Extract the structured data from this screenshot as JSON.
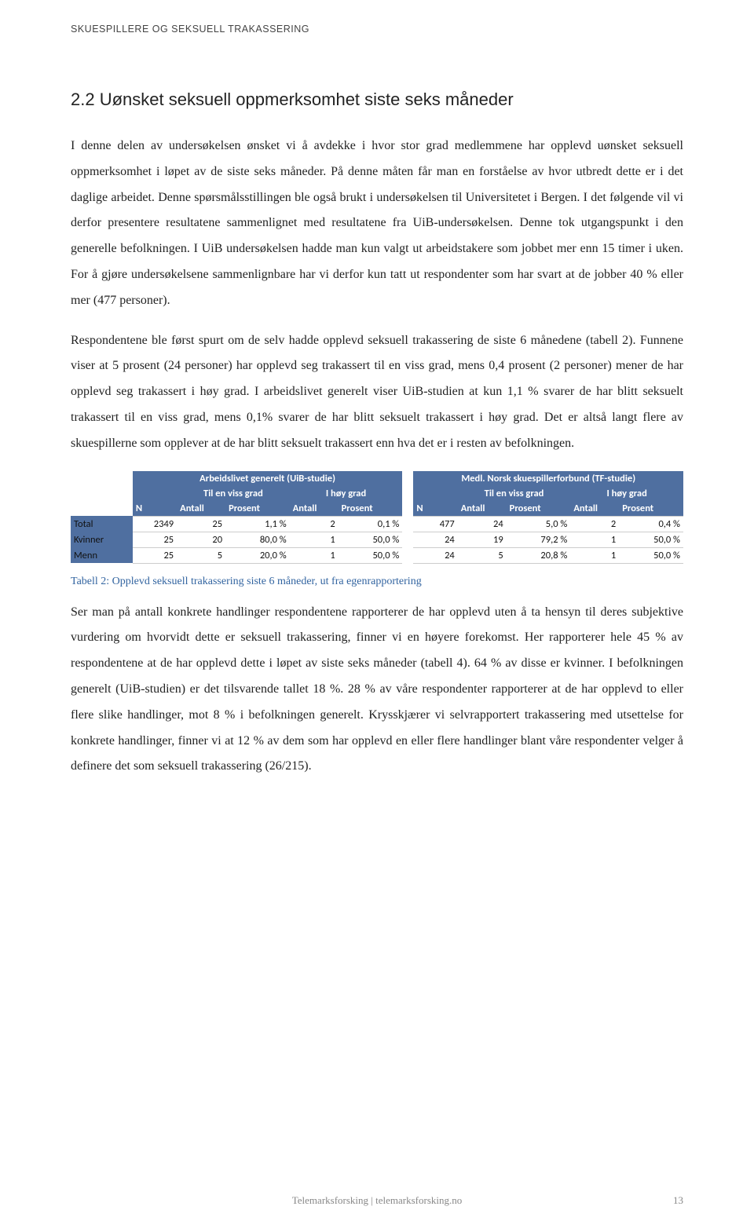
{
  "running_head": "SKUESPILLERE OG SEKSUELL TRAKASSERING",
  "section_title": "2.2 Uønsket seksuell oppmerksomhet siste seks måneder",
  "paragraphs": {
    "p1": "I denne delen av undersøkelsen ønsket vi å avdekke i hvor stor grad medlemmene har opplevd uønsket seksuell oppmerksomhet i løpet av de siste seks måneder. På denne måten får man en forståelse av hvor utbredt dette er i det daglige arbeidet. Denne spørsmålsstillingen ble også brukt i undersøkelsen til Universitetet i Bergen. I det følgende vil vi derfor presentere resultatene sammenlignet med resultatene fra UiB-undersøkelsen. Denne tok utgangspunkt i den generelle befolkningen. I UiB undersøkelsen hadde man kun valgt ut arbeidstakere som jobbet mer enn 15 timer i uken. For å gjøre undersøkelsene sammenlignbare har vi derfor kun tatt ut respondenter som har svart at de jobber 40 % eller mer (477 personer).",
    "p2": "Respondentene ble først spurt om de selv hadde opplevd seksuell trakassering de siste 6 månedene (tabell 2). Funnene viser at 5 prosent (24 personer) har opplevd seg trakassert til en viss grad, mens 0,4 prosent (2 personer) mener de har opplevd seg trakassert i høy grad. I arbeidslivet generelt viser UiB-studien at kun 1,1 % svarer de har blitt seksuelt trakassert til en viss grad, mens 0,1% svarer de har blitt seksuelt trakassert i høy grad. Det er altså langt flere av skuespillerne som opplever at de har blitt seksuelt trakassert enn hva det er i resten av befolkningen.",
    "p3": "Ser man på antall konkrete handlinger respondentene rapporterer de har opplevd uten å ta hensyn til deres subjektive vurdering om hvorvidt dette er seksuell trakassering, finner vi en høyere forekomst. Her rapporterer hele 45 % av respondentene at de har opplevd dette i løpet av siste seks måneder (tabell 4). 64 % av disse er kvinner. I befolkningen generelt (UiB-studien) er det tilsvarende tallet 18 %. 28 % av våre respondenter rapporterer at de har opplevd to eller flere slike handlinger, mot 8 % i befolkningen generelt. Krysskjærer vi selvrapportert trakassering med utsettelse for konkrete handlinger, finner vi at 12 % av dem som har opplevd en eller flere handlinger blant våre respondenter velger å definere det som seksuell trakassering (26/215)."
  },
  "table": {
    "headers": {
      "left_group": "Arbeidslivet generelt (UiB-studie)",
      "right_group": "Medl. Norsk skuespillerforbund (TF-studie)",
      "sub_a": "Til en viss grad",
      "sub_b": "I høy grad",
      "col_n": "N",
      "col_antall": "Antall",
      "col_prosent": "Prosent"
    },
    "rows": [
      {
        "label": "Total",
        "L": {
          "n": "2349",
          "a_ant": "25",
          "a_pct": "1,1 %",
          "b_ant": "2",
          "b_pct": "0,1 %"
        },
        "R": {
          "n": "477",
          "a_ant": "24",
          "a_pct": "5,0 %",
          "b_ant": "2",
          "b_pct": "0,4 %"
        }
      },
      {
        "label": "Kvinner",
        "L": {
          "n": "25",
          "a_ant": "20",
          "a_pct": "80,0 %",
          "b_ant": "1",
          "b_pct": "50,0 %"
        },
        "R": {
          "n": "24",
          "a_ant": "19",
          "a_pct": "79,2 %",
          "b_ant": "1",
          "b_pct": "50,0 %"
        }
      },
      {
        "label": "Menn",
        "L": {
          "n": "25",
          "a_ant": "5",
          "a_pct": "20,0 %",
          "b_ant": "1",
          "b_pct": "50,0 %"
        },
        "R": {
          "n": "24",
          "a_ant": "5",
          "a_pct": "20,8 %",
          "b_ant": "1",
          "b_pct": "50,0 %"
        }
      }
    ],
    "caption": "Tabell 2: Opplevd seksuell trakassering siste 6 måneder, ut fra egenrapportering"
  },
  "footer": {
    "source": "Telemarksforsking  |  telemarksforsking.no",
    "page_number": "13"
  },
  "colors": {
    "header_fill": "#4f6fa0",
    "caption_color": "#3264a0",
    "body_text": "#222222",
    "footer_text": "#888888"
  }
}
